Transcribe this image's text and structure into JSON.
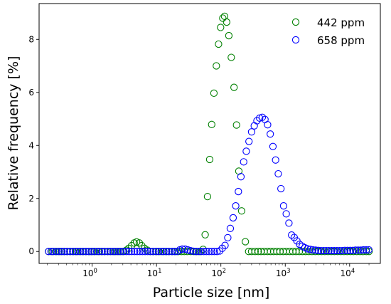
{
  "chart_data": {
    "type": "scatter",
    "xlabel": "Particle size [nm]",
    "ylabel": "Relative frequency [%]",
    "x_scale": "log",
    "xlim": [
      0.15,
      30000
    ],
    "ylim": [
      -0.45,
      9.35
    ],
    "x_major_ticks": [
      1,
      10,
      100,
      1000,
      10000
    ],
    "x_tick_labels": [
      {
        "base": "10",
        "exp": "0"
      },
      {
        "base": "10",
        "exp": "1"
      },
      {
        "base": "10",
        "exp": "2"
      },
      {
        "base": "10",
        "exp": "3"
      },
      {
        "base": "10",
        "exp": "4"
      }
    ],
    "y_ticks": [
      0,
      2,
      4,
      6,
      8
    ],
    "y_tick_labels": [
      "0",
      "2",
      "4",
      "6",
      "8"
    ],
    "grid": false,
    "legend_position": "top-right",
    "marker": "open-circle",
    "series": [
      {
        "name": "442 ppm",
        "color": "#008000",
        "points": [
          [
            0.21,
            0
          ],
          [
            0.24,
            0
          ],
          [
            0.27,
            0
          ],
          [
            0.3,
            0
          ],
          [
            0.33,
            0
          ],
          [
            0.37,
            0
          ],
          [
            0.41,
            0
          ],
          [
            0.46,
            0
          ],
          [
            0.51,
            0
          ],
          [
            0.57,
            0
          ],
          [
            0.64,
            0
          ],
          [
            0.71,
            0
          ],
          [
            0.8,
            0
          ],
          [
            0.89,
            0
          ],
          [
            1.0,
            0
          ],
          [
            1.1,
            0
          ],
          [
            1.25,
            0
          ],
          [
            1.4,
            0
          ],
          [
            1.55,
            0
          ],
          [
            1.75,
            0
          ],
          [
            1.95,
            0
          ],
          [
            2.2,
            0
          ],
          [
            2.45,
            0
          ],
          [
            2.7,
            0
          ],
          [
            3.0,
            0
          ],
          [
            3.4,
            0.05
          ],
          [
            3.7,
            0.12
          ],
          [
            4.1,
            0.22
          ],
          [
            4.5,
            0.32
          ],
          [
            4.9,
            0.36
          ],
          [
            5.4,
            0.32
          ],
          [
            5.9,
            0.22
          ],
          [
            6.5,
            0.12
          ],
          [
            7.2,
            0.05
          ],
          [
            8.0,
            0
          ],
          [
            8.9,
            0
          ],
          [
            10,
            0
          ],
          [
            11,
            0
          ],
          [
            12.5,
            0
          ],
          [
            14,
            0
          ],
          [
            15.5,
            0
          ],
          [
            17.5,
            0
          ],
          [
            19.5,
            0
          ],
          [
            22,
            0
          ],
          [
            24.5,
            0
          ],
          [
            27,
            0
          ],
          [
            30,
            0
          ],
          [
            34,
            0
          ],
          [
            38,
            0
          ],
          [
            42,
            0
          ],
          [
            47,
            0
          ],
          [
            53,
            0.08
          ],
          [
            57,
            0.63
          ],
          [
            62,
            2.07
          ],
          [
            67,
            3.47
          ],
          [
            72,
            4.79
          ],
          [
            78,
            5.97
          ],
          [
            85,
            7.0
          ],
          [
            92,
            7.82
          ],
          [
            99,
            8.45
          ],
          [
            107,
            8.8
          ],
          [
            114,
            8.87
          ],
          [
            123,
            8.65
          ],
          [
            133,
            8.14
          ],
          [
            145,
            7.32
          ],
          [
            160,
            6.19
          ],
          [
            175,
            4.77
          ],
          [
            190,
            3.03
          ],
          [
            210,
            1.53
          ],
          [
            240,
            0.37
          ],
          [
            270,
            0
          ],
          [
            300,
            0
          ],
          [
            340,
            0
          ],
          [
            380,
            0
          ],
          [
            420,
            0
          ],
          [
            470,
            0
          ],
          [
            530,
            0
          ],
          [
            590,
            0
          ],
          [
            660,
            0
          ],
          [
            740,
            0
          ],
          [
            830,
            0
          ],
          [
            930,
            0
          ],
          [
            1040,
            0
          ],
          [
            1170,
            0
          ],
          [
            1310,
            0
          ],
          [
            1470,
            0
          ],
          [
            1650,
            0
          ],
          [
            1850,
            0
          ],
          [
            2070,
            0
          ],
          [
            2320,
            0
          ],
          [
            2600,
            0
          ],
          [
            2920,
            0
          ],
          [
            3270,
            0
          ],
          [
            3670,
            0
          ],
          [
            4110,
            0
          ],
          [
            4610,
            0
          ],
          [
            5170,
            0
          ],
          [
            5800,
            0
          ],
          [
            6500,
            0
          ],
          [
            7290,
            0
          ],
          [
            8170,
            0
          ],
          [
            9160,
            0
          ],
          [
            10270,
            0
          ],
          [
            11500,
            0
          ],
          [
            12900,
            0
          ],
          [
            14470,
            0
          ],
          [
            16200,
            0
          ],
          [
            18200,
            0
          ],
          [
            20000,
            0
          ]
        ]
      },
      {
        "name": "658 ppm",
        "color": "#0000ff",
        "points": [
          [
            0.21,
            0
          ],
          [
            0.23,
            0
          ],
          [
            0.25,
            0
          ],
          [
            0.28,
            0
          ],
          [
            0.31,
            0
          ],
          [
            0.34,
            0
          ],
          [
            0.37,
            0
          ],
          [
            0.41,
            0
          ],
          [
            0.45,
            0
          ],
          [
            0.5,
            0
          ],
          [
            0.55,
            0
          ],
          [
            0.6,
            0
          ],
          [
            0.66,
            0
          ],
          [
            0.73,
            0
          ],
          [
            0.8,
            0
          ],
          [
            0.88,
            0
          ],
          [
            0.97,
            0
          ],
          [
            1.07,
            0
          ],
          [
            1.18,
            0
          ],
          [
            1.3,
            0
          ],
          [
            1.43,
            0
          ],
          [
            1.57,
            0
          ],
          [
            1.73,
            0
          ],
          [
            1.9,
            0
          ],
          [
            2.1,
            0
          ],
          [
            2.3,
            0
          ],
          [
            2.55,
            0
          ],
          [
            2.8,
            0
          ],
          [
            3.1,
            0
          ],
          [
            3.4,
            0
          ],
          [
            3.75,
            0
          ],
          [
            4.1,
            0
          ],
          [
            4.55,
            0
          ],
          [
            5.0,
            0
          ],
          [
            5.5,
            0
          ],
          [
            6.05,
            0
          ],
          [
            6.65,
            0
          ],
          [
            7.3,
            0
          ],
          [
            8.05,
            0
          ],
          [
            8.85,
            0
          ],
          [
            9.75,
            0
          ],
          [
            10.7,
            0
          ],
          [
            11.8,
            0
          ],
          [
            13,
            0
          ],
          [
            14.3,
            0
          ],
          [
            15.7,
            0
          ],
          [
            17.3,
            0
          ],
          [
            19,
            0
          ],
          [
            20.9,
            0
          ],
          [
            23,
            0.06
          ],
          [
            25.3,
            0.09
          ],
          [
            27.8,
            0.09
          ],
          [
            30.6,
            0.06
          ],
          [
            33.7,
            0.03
          ],
          [
            37,
            0.01
          ],
          [
            40.7,
            0
          ],
          [
            44.8,
            0
          ],
          [
            49.3,
            0
          ],
          [
            54.2,
            0
          ],
          [
            59.6,
            0
          ],
          [
            65.6,
            0
          ],
          [
            72.1,
            0
          ],
          [
            79.3,
            0
          ],
          [
            87.2,
            0
          ],
          [
            95.9,
            0.02
          ],
          [
            105,
            0.12
          ],
          [
            116,
            0.23
          ],
          [
            128,
            0.52
          ],
          [
            140,
            0.87
          ],
          [
            155,
            1.27
          ],
          [
            170,
            1.72
          ],
          [
            187,
            2.26
          ],
          [
            205,
            2.82
          ],
          [
            226,
            3.38
          ],
          [
            248,
            3.78
          ],
          [
            273,
            4.15
          ],
          [
            300,
            4.51
          ],
          [
            330,
            4.74
          ],
          [
            363,
            4.93
          ],
          [
            400,
            5.03
          ],
          [
            440,
            5.06
          ],
          [
            484,
            4.98
          ],
          [
            532,
            4.78
          ],
          [
            585,
            4.43
          ],
          [
            644,
            3.96
          ],
          [
            708,
            3.45
          ],
          [
            779,
            2.93
          ],
          [
            857,
            2.37
          ],
          [
            942,
            1.72
          ],
          [
            1036,
            1.42
          ],
          [
            1140,
            1.07
          ],
          [
            1254,
            0.62
          ],
          [
            1379,
            0.53
          ],
          [
            1517,
            0.4
          ],
          [
            1669,
            0.27
          ],
          [
            1836,
            0.2
          ],
          [
            2019,
            0.14
          ],
          [
            2221,
            0.1
          ],
          [
            2443,
            0.08
          ],
          [
            2688,
            0.06
          ],
          [
            2956,
            0.05
          ],
          [
            3252,
            0.04
          ],
          [
            3577,
            0.03
          ],
          [
            3935,
            0.03
          ],
          [
            4328,
            0.03
          ],
          [
            4761,
            0.03
          ],
          [
            5237,
            0.03
          ],
          [
            5761,
            0.03
          ],
          [
            6337,
            0.03
          ],
          [
            6971,
            0.03
          ],
          [
            7668,
            0.03
          ],
          [
            8435,
            0.04
          ],
          [
            9278,
            0.04
          ],
          [
            10206,
            0.04
          ],
          [
            11227,
            0.04
          ],
          [
            12350,
            0.05
          ],
          [
            13585,
            0.05
          ],
          [
            14943,
            0.05
          ],
          [
            16437,
            0.06
          ],
          [
            18081,
            0.06
          ],
          [
            19900,
            0.06
          ]
        ]
      }
    ]
  }
}
